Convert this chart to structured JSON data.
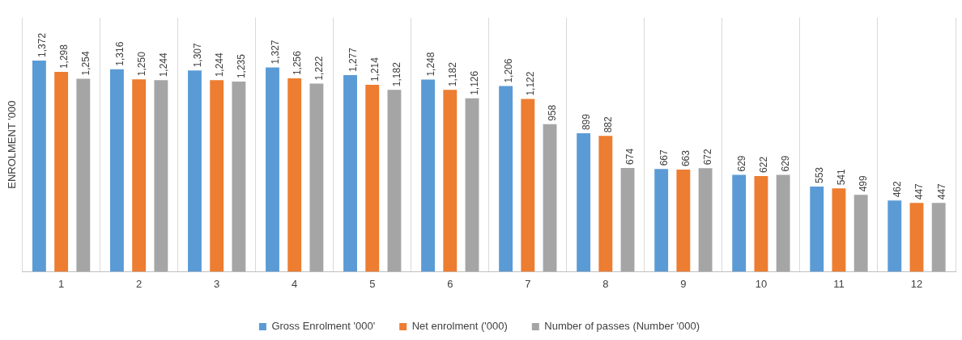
{
  "chart_data": {
    "type": "bar",
    "ylabel": "ENROLMENT '000",
    "categories": [
      "1",
      "2",
      "3",
      "4",
      "5",
      "6",
      "7",
      "8",
      "9",
      "10",
      "11",
      "12"
    ],
    "series": [
      {
        "name": "Gross Enrolment '000'",
        "color": "#5b9bd5",
        "values": [
          1372,
          1316,
          1307,
          1327,
          1277,
          1248,
          1206,
          899,
          667,
          629,
          553,
          462
        ],
        "value_labels": [
          "1,372",
          "1,316",
          "1,307",
          "1,327",
          "1,277",
          "1,248",
          "1,206",
          "899",
          "667",
          "629",
          "553",
          "462"
        ]
      },
      {
        "name": "Net enrolment ('000)",
        "color": "#ed7d31",
        "values": [
          1298,
          1250,
          1244,
          1256,
          1214,
          1182,
          1122,
          882,
          663,
          622,
          541,
          447
        ],
        "value_labels": [
          "1,298",
          "1,250",
          "1,244",
          "1,256",
          "1,214",
          "1,182",
          "1,122",
          "882",
          "663",
          "622",
          "541",
          "447"
        ]
      },
      {
        "name": "Number of passes (Number '000)",
        "color": "#a5a5a5",
        "values": [
          1254,
          1244,
          1235,
          1222,
          1182,
          1126,
          958,
          674,
          672,
          629,
          499,
          447
        ],
        "value_labels": [
          "1,254",
          "1,244",
          "1,235",
          "1,222",
          "1,182",
          "1,126",
          "958",
          "674",
          "672",
          "629",
          "499",
          "447"
        ]
      }
    ],
    "ylim": [
      0,
      1650
    ],
    "grid": "x",
    "legend": "bottom",
    "tick_labels": "x"
  }
}
